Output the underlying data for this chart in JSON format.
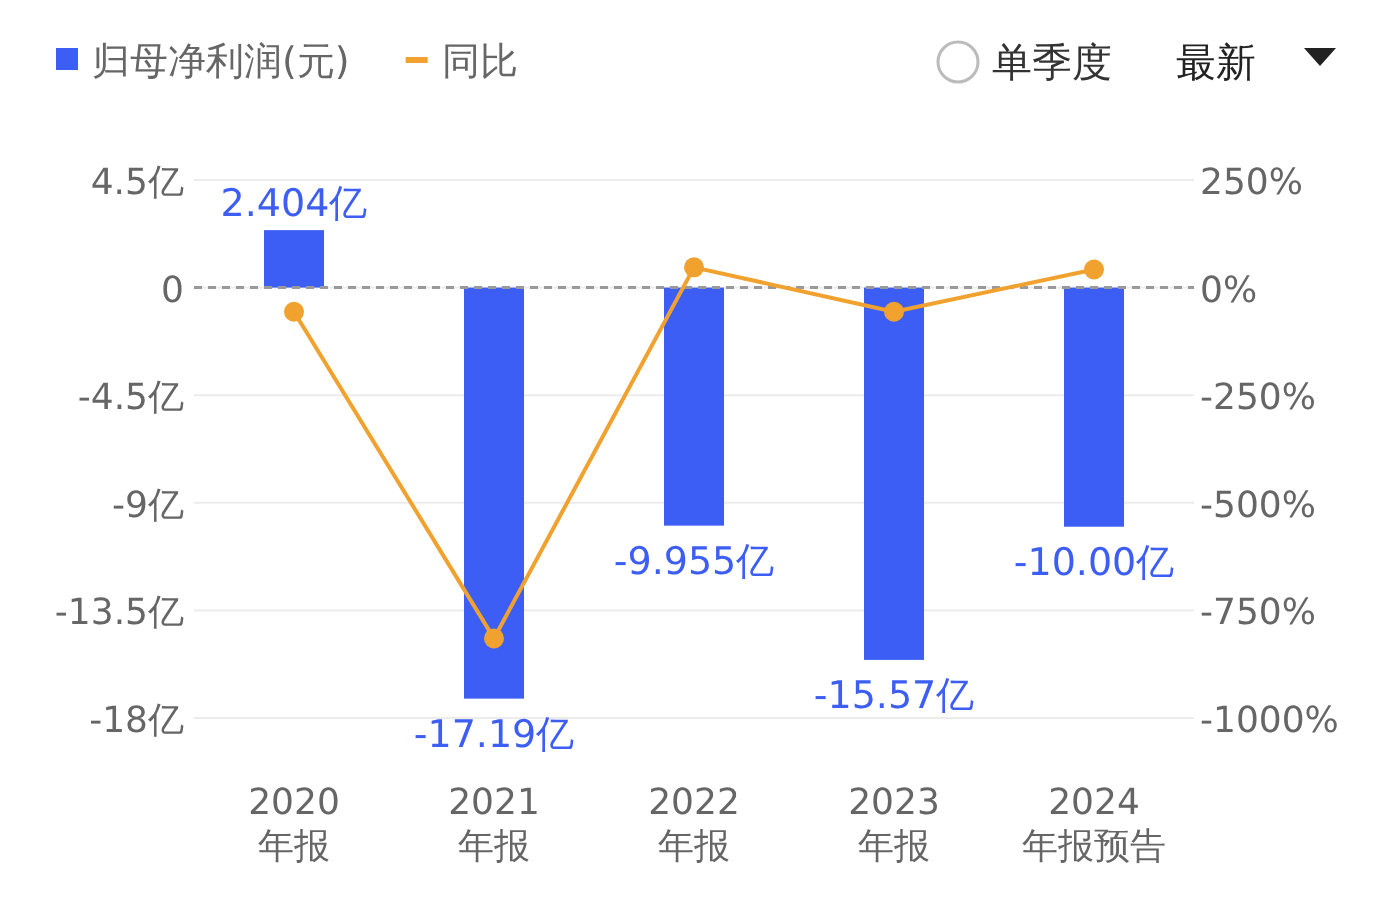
{
  "chart_data": {
    "type": "bar",
    "categories": [
      "2020\n年报",
      "2021\n年报",
      "2022\n年报",
      "2023\n年报",
      "2024\n年报预告"
    ],
    "series": [
      {
        "name": "归母净利润(元)",
        "color": "#3d5ef5",
        "values": [
          2.404,
          -17.19,
          -9.955,
          -15.57,
          -10.0
        ],
        "value_labels": [
          "2.404亿",
          "-17.19亿",
          "-9.955亿",
          "-15.57亿",
          "-10.00亿"
        ]
      },
      {
        "name": "同比",
        "type": "line",
        "axis": "y2",
        "color": "#f0a12e",
        "marker": "circle",
        "values": [
          -56,
          -815,
          47,
          -56,
          42
        ]
      }
    ],
    "ylim": [
      -18,
      4.5
    ],
    "yticks": [
      {
        "value": 4.5,
        "label": "4.5亿"
      },
      0,
      {
        "value": -4.5,
        "label": "-4.5亿"
      },
      {
        "value": -9,
        "label": "-9亿"
      },
      {
        "value": -13.5,
        "label": "-13.5亿"
      },
      {
        "value": -18,
        "label": "-18亿"
      }
    ],
    "y2lim": [
      -1000,
      250
    ],
    "y2ticks": [
      {
        "value": 250,
        "label": "250%"
      },
      {
        "value": 0,
        "label": "0%"
      },
      {
        "value": -250,
        "label": "-250%"
      },
      {
        "value": -500,
        "label": "-500%"
      },
      {
        "value": -750,
        "label": "-750%"
      },
      {
        "value": -1000,
        "label": "-1000%"
      }
    ],
    "ref_lines": [
      {
        "axis": "y",
        "value": 0,
        "color": "#999999",
        "line_style": "dashed"
      }
    ],
    "grid": "y",
    "legend": "top left",
    "annotations": [
      "单季度",
      "最新"
    ]
  }
}
